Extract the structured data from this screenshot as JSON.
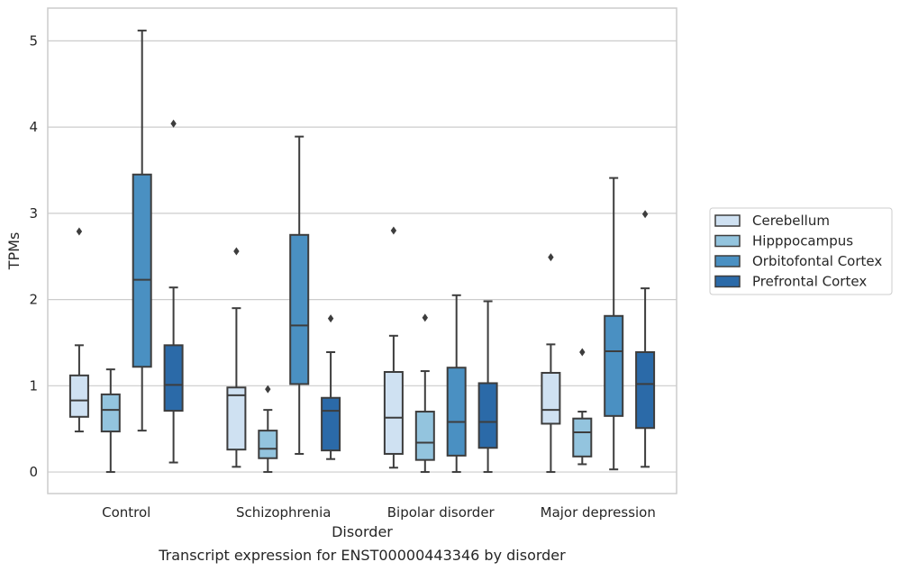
{
  "chart_data": {
    "type": "boxplot",
    "title": "Transcript expression for ENST00000443346 by disorder",
    "xlabel": "Disorder",
    "ylabel": "TPMs",
    "ylim": [
      -0.25,
      5.38
    ],
    "yticks": [
      "0",
      "1",
      "2",
      "3",
      "4",
      "5"
    ],
    "grid": true,
    "legend_position": "right",
    "categories": [
      "Control",
      "Schizophrenia",
      "Bipolar disorder",
      "Major depression"
    ],
    "series": [
      {
        "name": "Cerebellum",
        "color": "#cfe1f2",
        "boxes": [
          {
            "whislo": 0.47,
            "q1": 0.64,
            "med": 0.83,
            "q3": 1.12,
            "whishi": 1.47,
            "fliers": [
              2.79
            ]
          },
          {
            "whislo": 0.06,
            "q1": 0.26,
            "med": 0.89,
            "q3": 0.98,
            "whishi": 1.9,
            "fliers": [
              2.56
            ]
          },
          {
            "whislo": 0.05,
            "q1": 0.21,
            "med": 0.63,
            "q3": 1.16,
            "whishi": 1.58,
            "fliers": [
              2.8
            ]
          },
          {
            "whislo": 0.0,
            "q1": 0.56,
            "med": 0.72,
            "q3": 1.15,
            "whishi": 1.48,
            "fliers": [
              2.49
            ]
          }
        ]
      },
      {
        "name": "Hipppocampus",
        "color": "#93c4de",
        "boxes": [
          {
            "whislo": 0.0,
            "q1": 0.47,
            "med": 0.72,
            "q3": 0.9,
            "whishi": 1.19,
            "fliers": []
          },
          {
            "whislo": 0.0,
            "q1": 0.16,
            "med": 0.27,
            "q3": 0.48,
            "whishi": 0.72,
            "fliers": [
              0.96
            ]
          },
          {
            "whislo": 0.0,
            "q1": 0.14,
            "med": 0.34,
            "q3": 0.7,
            "whishi": 1.17,
            "fliers": [
              1.79
            ]
          },
          {
            "whislo": 0.09,
            "q1": 0.18,
            "med": 0.46,
            "q3": 0.62,
            "whishi": 0.7,
            "fliers": [
              1.39
            ]
          }
        ]
      },
      {
        "name": "Orbitofontal Cortex",
        "color": "#4a90c2",
        "boxes": [
          {
            "whislo": 0.48,
            "q1": 1.22,
            "med": 2.23,
            "q3": 3.45,
            "whishi": 5.12,
            "fliers": []
          },
          {
            "whislo": 0.21,
            "q1": 1.02,
            "med": 1.7,
            "q3": 2.75,
            "whishi": 3.89,
            "fliers": []
          },
          {
            "whislo": 0.0,
            "q1": 0.19,
            "med": 0.58,
            "q3": 1.21,
            "whishi": 2.05,
            "fliers": []
          },
          {
            "whislo": 0.03,
            "q1": 0.65,
            "med": 1.4,
            "q3": 1.81,
            "whishi": 3.41,
            "fliers": []
          }
        ]
      },
      {
        "name": "Prefrontal Cortex",
        "color": "#2b6aa8",
        "boxes": [
          {
            "whislo": 0.11,
            "q1": 0.71,
            "med": 1.01,
            "q3": 1.47,
            "whishi": 2.14,
            "fliers": [
              4.04
            ]
          },
          {
            "whislo": 0.15,
            "q1": 0.25,
            "med": 0.71,
            "q3": 0.86,
            "whishi": 1.39,
            "fliers": [
              1.78
            ]
          },
          {
            "whislo": 0.0,
            "q1": 0.28,
            "med": 0.58,
            "q3": 1.03,
            "whishi": 1.98,
            "fliers": []
          },
          {
            "whislo": 0.06,
            "q1": 0.51,
            "med": 1.02,
            "q3": 1.39,
            "whishi": 2.13,
            "fliers": [
              2.99
            ]
          }
        ]
      }
    ]
  }
}
